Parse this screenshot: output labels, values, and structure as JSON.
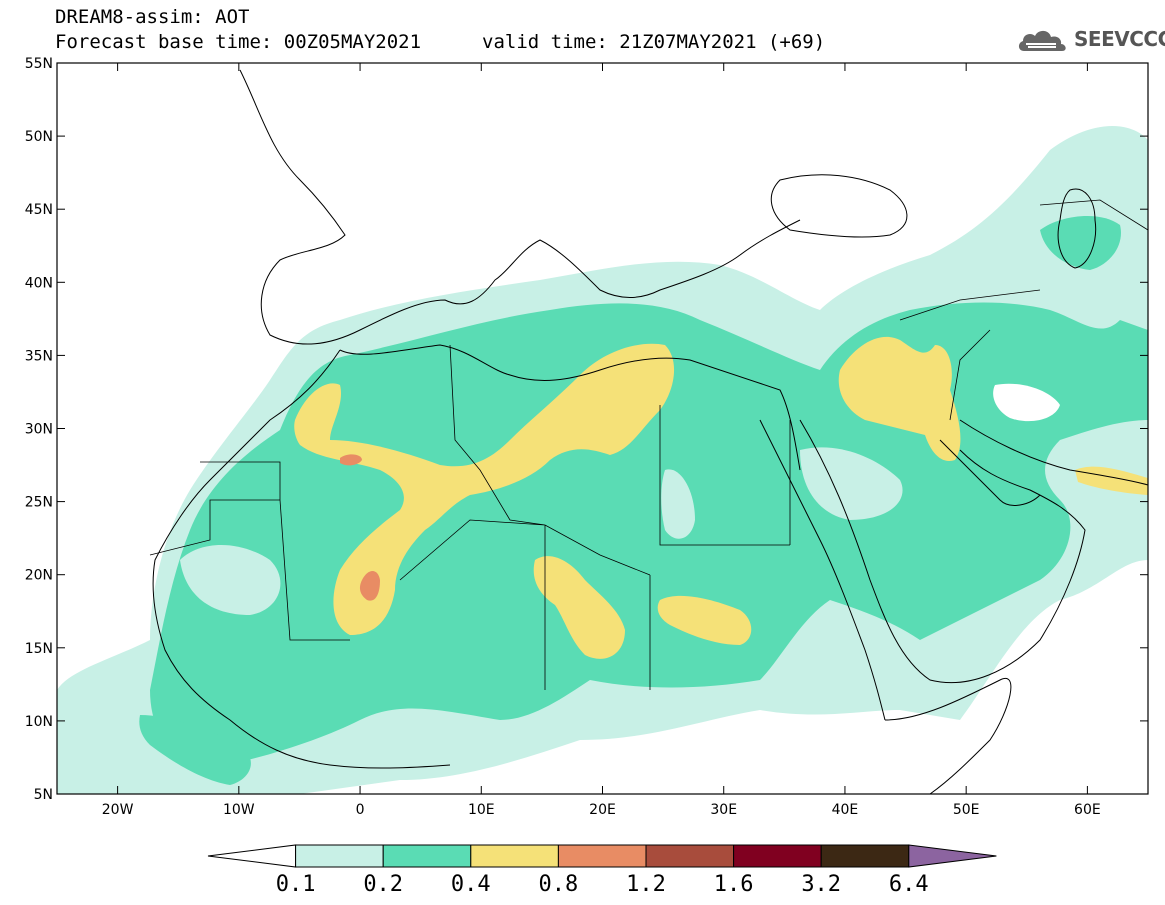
{
  "header": {
    "title": "DREAM8-assim: AOT",
    "forecast_base": "Forecast base time: 00Z05MAY2021",
    "valid_time": "valid time: 21Z07MAY2021 (+69)"
  },
  "logo": {
    "text": "SEEVCCC",
    "icon": "cloud-logo-icon"
  },
  "axes": {
    "lat_labels": [
      "55N",
      "50N",
      "45N",
      "40N",
      "35N",
      "30N",
      "25N",
      "20N",
      "15N",
      "10N",
      "5N"
    ],
    "lat_values": [
      55,
      50,
      45,
      40,
      35,
      30,
      25,
      20,
      15,
      10,
      5
    ],
    "lon_labels": [
      "20W",
      "10W",
      "0",
      "10E",
      "20E",
      "30E",
      "40E",
      "50E",
      "60E"
    ],
    "lon_values": [
      -20,
      -10,
      0,
      10,
      20,
      30,
      40,
      50,
      60
    ],
    "lon_range": [
      -25,
      65
    ],
    "lat_range": [
      5,
      55
    ]
  },
  "colorbar": {
    "labels": [
      "0.1",
      "0.2",
      "0.4",
      "0.8",
      "1.2",
      "1.6",
      "3.2",
      "6.4"
    ],
    "colors": [
      "#ffffff",
      "#c8f0e6",
      "#5adcb4",
      "#f5e178",
      "#e88c64",
      "#a84c3c",
      "#800020",
      "#3c2814",
      "#8c64a0"
    ]
  }
}
